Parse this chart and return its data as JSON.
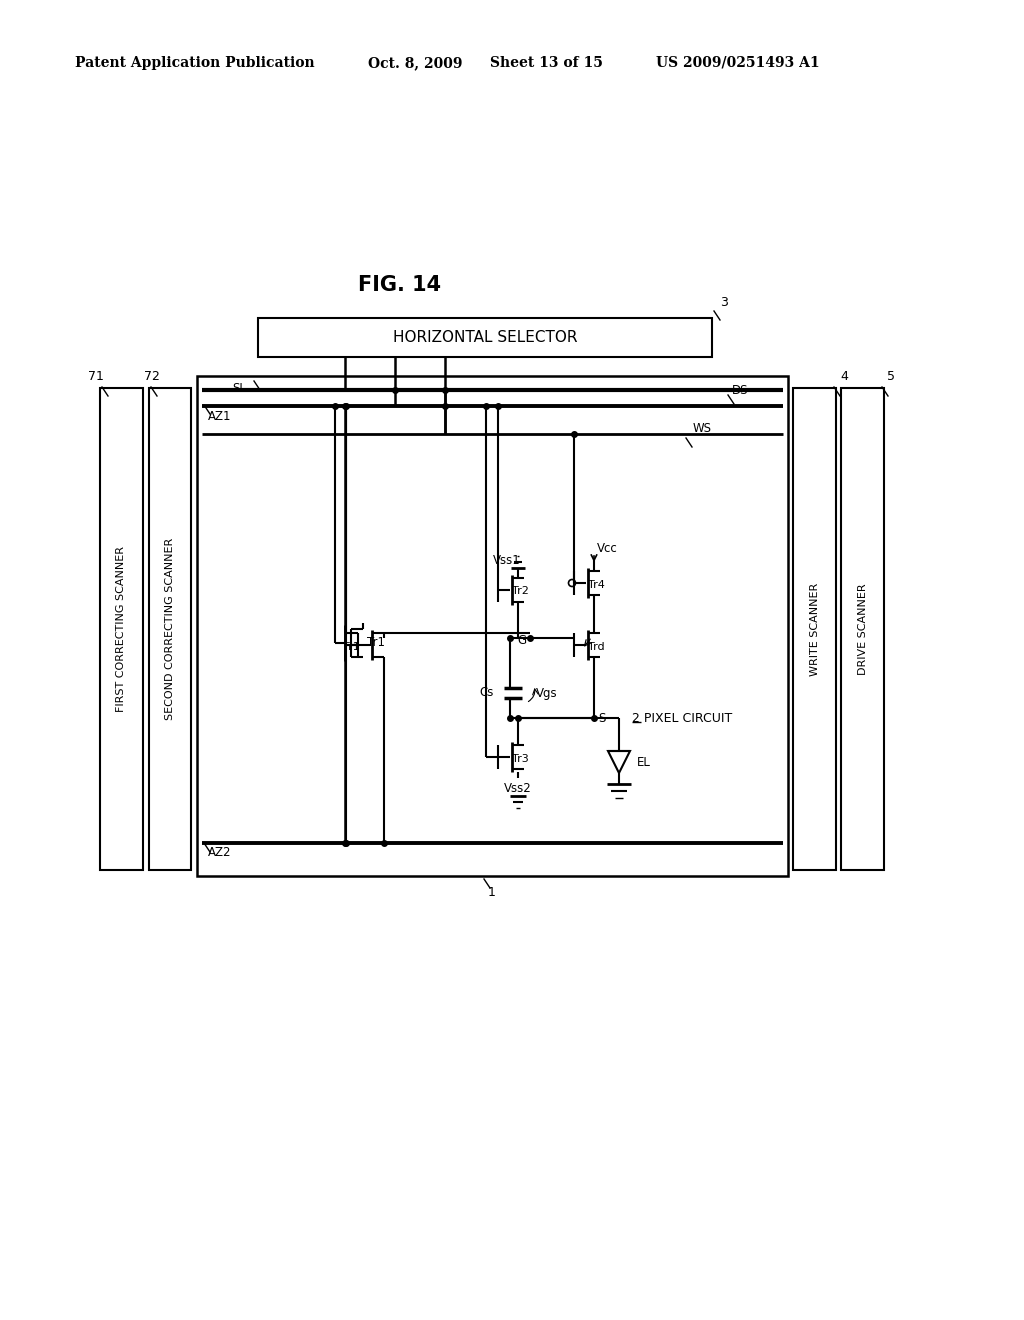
{
  "background": "#ffffff",
  "header_left": "Patent Application Publication",
  "header_date": "Oct. 8, 2009",
  "header_sheet": "Sheet 13 of 15",
  "header_patent": "US 2009/0251493 A1",
  "fig_title": "FIG. 14"
}
